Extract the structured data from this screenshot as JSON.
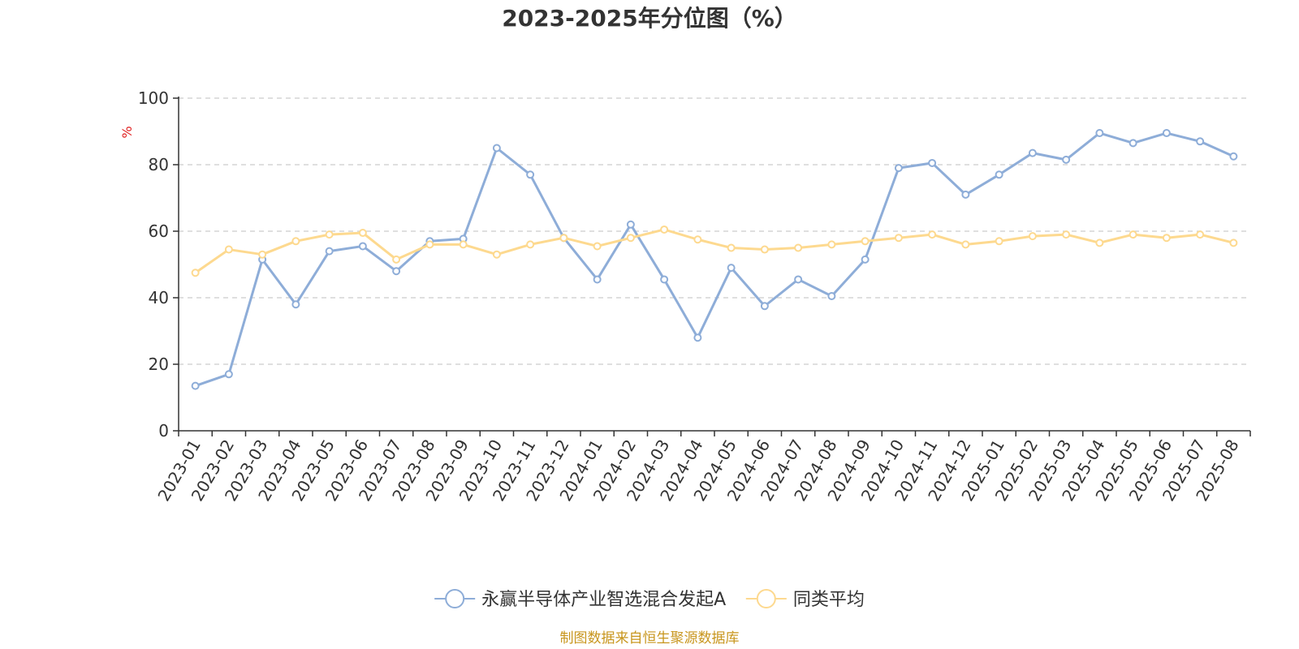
{
  "chart_data": {
    "type": "line",
    "title": "2023-2025年分位图（%）",
    "ylabel": "%",
    "xlabel": "",
    "ylim": [
      0,
      100
    ],
    "yticks": [
      0,
      20,
      40,
      60,
      80,
      100
    ],
    "grid": true,
    "legend_position": "bottom-center",
    "categories": [
      "2023-01",
      "2023-02",
      "2023-03",
      "2023-04",
      "2023-05",
      "2023-06",
      "2023-07",
      "2023-08",
      "2023-09",
      "2023-10",
      "2023-11",
      "2023-12",
      "2024-01",
      "2024-02",
      "2024-03",
      "2024-04",
      "2024-05",
      "2024-06",
      "2024-07",
      "2024-08",
      "2024-09",
      "2024-10",
      "2024-11",
      "2024-12",
      "2025-01",
      "2025-02",
      "2025-03",
      "2025-04",
      "2025-05",
      "2025-06",
      "2025-07",
      "2025-08"
    ],
    "series": [
      {
        "name": "永赢半导体产业智选混合发起A",
        "color": "#8eadd8",
        "values": [
          13.5,
          17,
          51.5,
          38,
          54,
          55.5,
          48,
          57,
          57.7,
          85,
          77,
          58,
          45.5,
          62,
          45.5,
          28,
          49,
          37.5,
          45.5,
          40.5,
          51.5,
          79,
          80.5,
          71,
          77,
          83.5,
          81.5,
          89.5,
          86.5,
          89.5,
          87,
          82.5
        ]
      },
      {
        "name": "同类平均",
        "color": "#fdd98f",
        "values": [
          47.5,
          54.5,
          53,
          57,
          59,
          59.5,
          51.5,
          56,
          56,
          53,
          56,
          58,
          55.5,
          58,
          60.5,
          57.5,
          55,
          54.5,
          55,
          56,
          57,
          58,
          59,
          56,
          57,
          58.5,
          59,
          56.5,
          59,
          58,
          59,
          56.5
        ]
      }
    ]
  },
  "source_text": "制图数据来自恒生聚源数据库",
  "colors": {
    "axis": "#333333",
    "grid": "#cccccc",
    "ylabel": "#e02020",
    "source": "#c8961e"
  }
}
